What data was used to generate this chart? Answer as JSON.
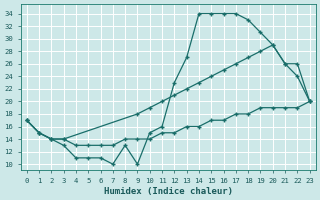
{
  "xlabel": "Humidex (Indice chaleur)",
  "bg_color": "#cde8e8",
  "line_color": "#1a6e6a",
  "grid_color": "#b8d8d8",
  "xlim": [
    -0.5,
    23.5
  ],
  "ylim": [
    9,
    35.5
  ],
  "yticks": [
    10,
    12,
    14,
    16,
    18,
    20,
    22,
    24,
    26,
    28,
    30,
    32,
    34
  ],
  "xticks": [
    0,
    1,
    2,
    3,
    4,
    5,
    6,
    7,
    8,
    9,
    10,
    11,
    12,
    13,
    14,
    15,
    16,
    17,
    18,
    19,
    20,
    21,
    22,
    23
  ],
  "curve1_x": [
    0,
    1,
    2,
    3,
    4,
    5,
    6,
    7,
    8,
    9,
    10,
    11,
    12,
    13,
    14,
    15,
    16,
    17,
    18,
    19,
    20,
    21,
    22,
    23
  ],
  "curve1_y": [
    17,
    15,
    14,
    13,
    11,
    11,
    11,
    10,
    13,
    10,
    15,
    16,
    23,
    27,
    34,
    34,
    34,
    34,
    33,
    31,
    29,
    26,
    24,
    20
  ],
  "curve2_x": [
    0,
    1,
    2,
    3,
    9,
    10,
    11,
    12,
    13,
    14,
    15,
    16,
    17,
    18,
    19,
    20,
    21,
    22,
    23
  ],
  "curve2_y": [
    17,
    15,
    14,
    14,
    18,
    19,
    20,
    21,
    22,
    23,
    24,
    25,
    26,
    27,
    28,
    29,
    26,
    26,
    20
  ],
  "curve3_x": [
    0,
    1,
    2,
    3,
    4,
    5,
    6,
    7,
    8,
    9,
    10,
    11,
    12,
    13,
    14,
    15,
    16,
    17,
    18,
    19,
    20,
    21,
    22,
    23
  ],
  "curve3_y": [
    17,
    15,
    14,
    14,
    13,
    13,
    13,
    13,
    14,
    14,
    14,
    15,
    15,
    16,
    16,
    17,
    17,
    18,
    18,
    19,
    19,
    19,
    19,
    20
  ]
}
